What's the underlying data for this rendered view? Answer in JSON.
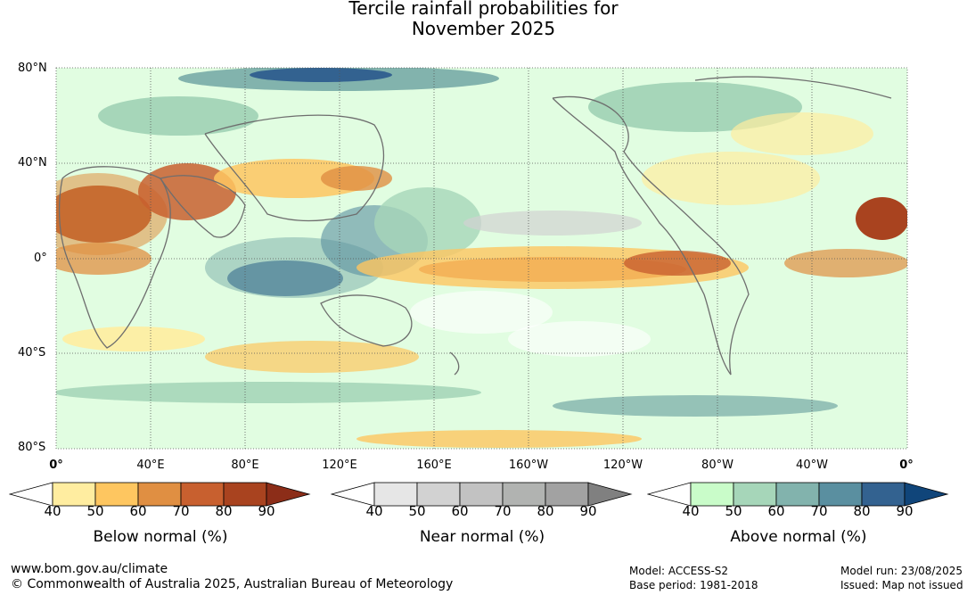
{
  "title_line1": "Tercile rainfall probabilities for",
  "title_line2": "November 2025",
  "map": {
    "lat_labels": [
      "80°N",
      "40°N",
      "0°",
      "40°S",
      "80°S"
    ],
    "lon_labels": [
      "0°",
      "40°E",
      "80°E",
      "120°E",
      "160°E",
      "160°W",
      "120°W",
      "80°W",
      "40°W",
      "0°"
    ],
    "lat_range": [
      -80,
      80
    ],
    "lon_range": [
      0,
      360
    ],
    "gridlines": true
  },
  "legends": [
    {
      "label": "Below normal (%)",
      "ticks": [
        "40",
        "50",
        "60",
        "70",
        "80",
        "90"
      ],
      "colors": [
        "#ffffff",
        "#ffeda0",
        "#fec660",
        "#e08f42",
        "#c8602f",
        "#a9431f",
        "#8c2d18"
      ]
    },
    {
      "label": "Near normal (%)",
      "ticks": [
        "40",
        "50",
        "60",
        "70",
        "80",
        "90"
      ],
      "colors": [
        "#ffffff",
        "#e6e6e6",
        "#d2d2d2",
        "#c2c2c2",
        "#b1b3b1",
        "#a2a2a2",
        "#808080"
      ]
    },
    {
      "label": "Above normal (%)",
      "ticks": [
        "40",
        "50",
        "60",
        "70",
        "80",
        "90"
      ],
      "colors": [
        "#ffffff",
        "#c9fcc9",
        "#a6d6b9",
        "#82b3ad",
        "#5a8fa0",
        "#336290",
        "#10457a"
      ]
    }
  ],
  "footer": {
    "url": "www.bom.gov.au/climate",
    "copyright": "© Commonwealth of Australia 2025, Australian Bureau of Meteorology",
    "model": "Model: ACCESS-S2",
    "base_period": "Base period: 1981-2018",
    "model_run": "Model run: 23/08/2025",
    "issued": "Issued: Map not issued"
  }
}
